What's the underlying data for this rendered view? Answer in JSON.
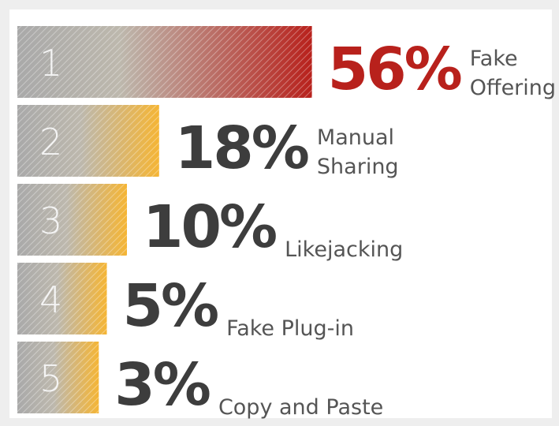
{
  "chart_data": {
    "type": "bar",
    "ranks": [
      1,
      2,
      3,
      4,
      5
    ],
    "categories": [
      [
        "Fake",
        "Offering"
      ],
      [
        "Manual",
        "Sharing"
      ],
      [
        "Likejacking"
      ],
      [
        "Fake Plug-in"
      ],
      [
        "Copy and Paste"
      ]
    ],
    "values": [
      56,
      18,
      10,
      5,
      3
    ],
    "value_labels": [
      "56%",
      "18%",
      "10%",
      "5%",
      "3%"
    ],
    "colors": [
      "#b8211c",
      "#f5b535",
      "#f5b535",
      "#f5b535",
      "#f5b535"
    ],
    "label_colors": [
      "#b8211c",
      "#3d3d3d",
      "#3d3d3d",
      "#3d3d3d",
      "#3d3d3d"
    ]
  }
}
